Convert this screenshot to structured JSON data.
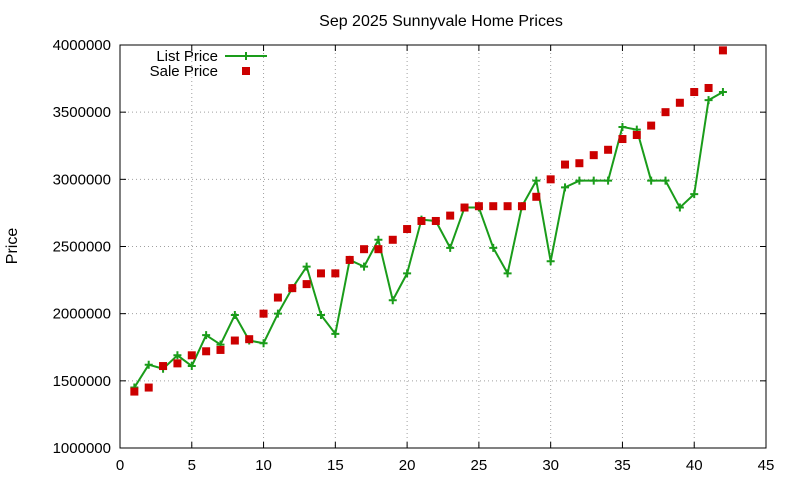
{
  "chart_data": {
    "type": "line",
    "title": "Sep 2025 Sunnyvale Home Prices",
    "xlabel": "",
    "ylabel": "Price",
    "xlim": [
      0,
      45
    ],
    "ylim": [
      1000000,
      4000000
    ],
    "x_ticks": [
      0,
      5,
      10,
      15,
      20,
      25,
      30,
      35,
      40,
      45
    ],
    "y_ticks": [
      1000000,
      1500000,
      2000000,
      2500000,
      3000000,
      3500000,
      4000000
    ],
    "grid": true,
    "legend_position": "top-left",
    "series": [
      {
        "name": "List Price",
        "style": "line-points",
        "color": "#1a9c1a",
        "x": [
          1,
          2,
          3,
          4,
          5,
          6,
          7,
          8,
          9,
          10,
          11,
          12,
          13,
          14,
          15,
          16,
          17,
          18,
          19,
          20,
          21,
          22,
          23,
          24,
          25,
          26,
          27,
          28,
          29,
          30,
          31,
          32,
          33,
          34,
          35,
          36,
          37,
          38,
          39,
          40,
          41,
          42
        ],
        "y": [
          1450000,
          1620000,
          1590000,
          1690000,
          1610000,
          1840000,
          1770000,
          1990000,
          1800000,
          1780000,
          2000000,
          2190000,
          2350000,
          1990000,
          1850000,
          2400000,
          2350000,
          2550000,
          2100000,
          2300000,
          2700000,
          2690000,
          2490000,
          2790000,
          2790000,
          2490000,
          2300000,
          2800000,
          2990000,
          2390000,
          2940000,
          2990000,
          2990000,
          2990000,
          3390000,
          3370000,
          2990000,
          2990000,
          2790000,
          2890000,
          3590000,
          3650000
        ]
      },
      {
        "name": "Sale Price",
        "style": "points",
        "color": "#cc0000",
        "x": [
          1,
          2,
          3,
          4,
          5,
          6,
          7,
          8,
          9,
          10,
          11,
          12,
          13,
          14,
          15,
          16,
          17,
          18,
          19,
          20,
          21,
          22,
          23,
          24,
          25,
          26,
          27,
          28,
          29,
          30,
          31,
          32,
          33,
          34,
          35,
          36,
          37,
          38,
          39,
          40,
          41,
          42
        ],
        "y": [
          1420000,
          1450000,
          1610000,
          1630000,
          1690000,
          1720000,
          1730000,
          1800000,
          1810000,
          2000000,
          2120000,
          2190000,
          2220000,
          2300000,
          2300000,
          2400000,
          2480000,
          2480000,
          2550000,
          2630000,
          2690000,
          2690000,
          2730000,
          2790000,
          2800000,
          2800000,
          2800000,
          2800000,
          2870000,
          3000000,
          3110000,
          3120000,
          3180000,
          3220000,
          3300000,
          3330000,
          3400000,
          3500000,
          3570000,
          3650000,
          3680000,
          3960000
        ]
      }
    ]
  }
}
